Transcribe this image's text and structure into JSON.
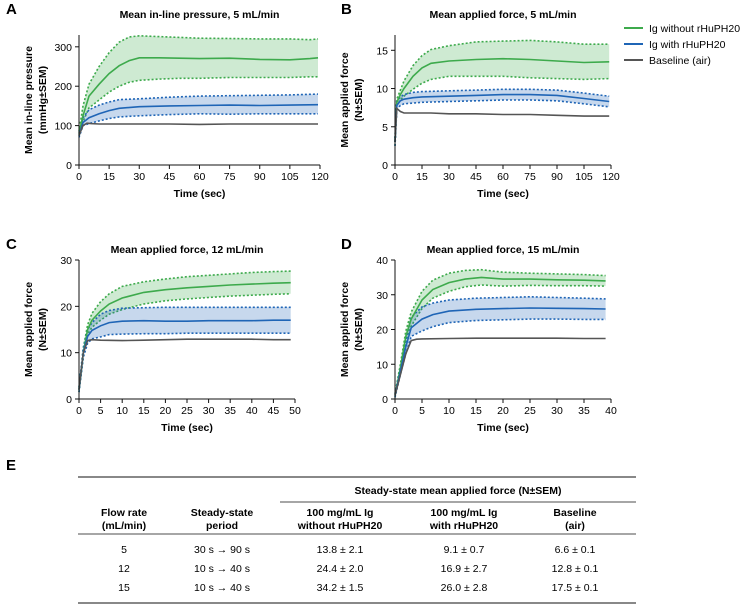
{
  "chart_data": [
    {
      "panel": "A",
      "type": "line",
      "title": "Mean in-line pressure, 5 mL/min",
      "xlabel": "Time (sec)",
      "ylabel": [
        "Mean in-line pressure",
        "(mmHg±SEM)"
      ],
      "xlim": [
        0,
        120
      ],
      "ylim": [
        0,
        330
      ],
      "xticks": [
        0,
        15,
        30,
        45,
        60,
        75,
        90,
        105,
        120
      ],
      "yticks": [
        0,
        100,
        200,
        300
      ],
      "series": [
        {
          "name": "Ig without rHuPH20",
          "color": "#3daa4c",
          "band": true,
          "x": [
            0,
            2,
            5,
            10,
            15,
            20,
            25,
            30,
            40,
            50,
            60,
            75,
            90,
            105,
            115,
            119
          ],
          "mean": [
            80,
            125,
            175,
            205,
            232,
            252,
            265,
            272,
            272,
            271,
            270,
            271,
            268,
            267,
            270,
            272
          ],
          "upper": [
            85,
            150,
            205,
            250,
            285,
            312,
            325,
            328,
            326,
            324,
            322,
            321,
            320,
            320,
            318,
            320
          ],
          "lower": [
            75,
            110,
            145,
            165,
            185,
            200,
            210,
            215,
            218,
            220,
            220,
            222,
            222,
            222,
            224,
            224
          ]
        },
        {
          "name": "Ig with rHuPH20",
          "color": "#1f65b6",
          "band": true,
          "x": [
            0,
            2,
            5,
            10,
            15,
            20,
            30,
            45,
            60,
            75,
            90,
            105,
            119
          ],
          "mean": [
            75,
            108,
            120,
            130,
            138,
            144,
            148,
            150,
            151,
            152,
            151,
            152,
            153
          ],
          "upper": [
            80,
            120,
            140,
            152,
            160,
            166,
            168,
            172,
            175,
            176,
            177,
            178,
            180
          ],
          "lower": [
            70,
            100,
            105,
            112,
            118,
            122,
            125,
            128,
            130,
            129,
            130,
            130,
            130
          ]
        },
        {
          "name": "Baseline (air)",
          "color": "#555555",
          "band": false,
          "x": [
            0,
            2,
            4,
            6,
            10,
            20,
            30,
            45,
            60,
            75,
            90,
            105,
            119
          ],
          "mean": [
            75,
            100,
            106,
            105,
            104,
            104,
            104,
            104,
            103,
            104,
            104,
            104,
            104
          ]
        }
      ]
    },
    {
      "panel": "B",
      "type": "line",
      "title": "Mean applied force, 5 mL/min",
      "xlabel": "Time (sec)",
      "ylabel": [
        "Mean applied force",
        "(N±SEM)"
      ],
      "xlim": [
        0,
        120
      ],
      "ylim": [
        0,
        17
      ],
      "xticks": [
        0,
        15,
        30,
        45,
        60,
        75,
        90,
        105,
        120
      ],
      "yticks": [
        0,
        5,
        10,
        15
      ],
      "series": [
        {
          "name": "Ig without rHuPH20",
          "color": "#3daa4c",
          "band": true,
          "x": [
            0,
            1,
            3,
            5,
            10,
            15,
            20,
            30,
            45,
            60,
            75,
            90,
            105,
            119
          ],
          "mean": [
            3,
            8.2,
            9.2,
            10,
            11.6,
            12.7,
            13.3,
            13.6,
            13.8,
            13.9,
            13.8,
            13.6,
            13.4,
            13.5
          ],
          "upper": [
            3.5,
            8.6,
            9.8,
            11,
            13.0,
            14.3,
            15.1,
            15.6,
            16.1,
            16.2,
            16.3,
            16.1,
            15.8,
            15.8
          ],
          "lower": [
            2.5,
            7.8,
            8.5,
            9.0,
            9.9,
            10.7,
            11.2,
            11.6,
            11.6,
            11.6,
            11.4,
            11.3,
            11.2,
            11.3
          ]
        },
        {
          "name": "Ig with rHuPH20",
          "color": "#1f65b6",
          "band": true,
          "x": [
            0,
            1,
            3,
            5,
            10,
            15,
            30,
            45,
            60,
            75,
            90,
            105,
            119
          ],
          "mean": [
            3,
            7.8,
            8.4,
            8.6,
            8.8,
            8.9,
            9.0,
            9.1,
            9.2,
            9.2,
            9.1,
            8.7,
            8.3
          ],
          "upper": [
            3.5,
            8.3,
            8.9,
            9.2,
            9.5,
            9.6,
            9.7,
            9.8,
            9.9,
            9.9,
            9.8,
            9.4,
            9.0
          ],
          "lower": [
            2.5,
            7.3,
            7.8,
            8.0,
            8.1,
            8.2,
            8.3,
            8.4,
            8.5,
            8.5,
            8.4,
            8.0,
            7.6
          ]
        },
        {
          "name": "Baseline (air)",
          "color": "#555555",
          "band": false,
          "x": [
            0,
            1,
            3,
            5,
            10,
            20,
            30,
            45,
            60,
            75,
            90,
            105,
            119
          ],
          "mean": [
            3,
            7.4,
            7.0,
            6.8,
            6.8,
            6.8,
            6.7,
            6.7,
            6.6,
            6.6,
            6.5,
            6.4,
            6.4
          ]
        }
      ]
    },
    {
      "panel": "C",
      "type": "line",
      "title": "Mean applied force, 12 mL/min",
      "xlabel": "Time (sec)",
      "ylabel": [
        "Mean applied force",
        "(N±SEM)"
      ],
      "xlim": [
        0,
        50
      ],
      "ylim": [
        0,
        30
      ],
      "xticks": [
        0,
        5,
        10,
        15,
        20,
        25,
        30,
        35,
        40,
        45,
        50
      ],
      "yticks": [
        0,
        10,
        20,
        30
      ],
      "series": [
        {
          "name": "Ig without rHuPH20",
          "color": "#3daa4c",
          "band": true,
          "x": [
            0,
            1,
            2,
            3,
            5,
            7,
            10,
            15,
            20,
            25,
            30,
            35,
            40,
            45,
            49
          ],
          "mean": [
            2,
            10,
            15,
            17,
            19,
            20.5,
            21.8,
            23.0,
            23.6,
            24.0,
            24.3,
            24.6,
            24.8,
            25.0,
            25.1
          ],
          "upper": [
            2.5,
            11,
            16,
            18.5,
            21,
            22.7,
            24.3,
            25.3,
            25.9,
            26.4,
            26.7,
            27.0,
            27.3,
            27.5,
            27.6
          ],
          "lower": [
            1.5,
            9,
            14,
            15.5,
            17,
            18.3,
            19.3,
            20.5,
            21.2,
            21.6,
            21.9,
            22.2,
            22.4,
            22.6,
            22.7
          ]
        },
        {
          "name": "Ig with rHuPH20",
          "color": "#1f65b6",
          "band": true,
          "x": [
            0,
            1,
            2,
            3,
            5,
            7,
            10,
            15,
            20,
            25,
            30,
            35,
            40,
            45,
            49
          ],
          "mean": [
            2,
            10,
            13.5,
            14.8,
            15.8,
            16.5,
            16.8,
            16.9,
            16.8,
            16.8,
            16.9,
            16.9,
            16.9,
            17.0,
            17.0
          ],
          "upper": [
            2.5,
            11,
            15,
            16.5,
            18.3,
            19.1,
            19.6,
            19.7,
            19.8,
            19.8,
            19.8,
            19.8,
            19.8,
            19.8,
            19.8
          ],
          "lower": [
            1.5,
            9,
            12,
            13.0,
            13.4,
            13.9,
            14.0,
            14.1,
            14.1,
            14.2,
            14.2,
            14.2,
            14.2,
            14.2,
            14.2
          ]
        },
        {
          "name": "Baseline (air)",
          "color": "#555555",
          "band": false,
          "x": [
            0,
            1,
            2,
            3,
            5,
            10,
            15,
            20,
            25,
            30,
            35,
            40,
            45,
            49
          ],
          "mean": [
            2,
            10,
            12.6,
            12.8,
            12.7,
            12.6,
            12.7,
            12.8,
            12.9,
            12.9,
            12.9,
            12.9,
            12.8,
            12.8
          ]
        }
      ]
    },
    {
      "panel": "D",
      "type": "line",
      "title": "Mean applied force, 15 mL/min",
      "xlabel": "Time (sec)",
      "ylabel": [
        "Mean applied force",
        "(N±SEM)"
      ],
      "xlim": [
        0,
        40
      ],
      "ylim": [
        0,
        40
      ],
      "xticks": [
        0,
        5,
        10,
        15,
        20,
        25,
        30,
        35,
        40
      ],
      "yticks": [
        0,
        10,
        20,
        30,
        40
      ],
      "series": [
        {
          "name": "Ig without rHuPH20",
          "color": "#3daa4c",
          "band": true,
          "x": [
            0,
            1,
            2,
            3,
            5,
            7,
            10,
            13,
            16,
            20,
            25,
            30,
            35,
            39
          ],
          "mean": [
            1,
            9,
            18,
            23,
            28.5,
            31.5,
            33.5,
            34.5,
            35.0,
            34.5,
            34.5,
            34.3,
            34.2,
            34.0
          ],
          "upper": [
            1.5,
            10,
            19.5,
            25,
            31,
            34.2,
            36.2,
            37.0,
            37.2,
            36.5,
            36.2,
            36.0,
            35.8,
            35.5
          ],
          "lower": [
            0.5,
            8,
            16.5,
            21,
            26,
            29,
            31,
            32.3,
            32.8,
            32.5,
            32.7,
            32.6,
            32.6,
            32.5
          ]
        },
        {
          "name": "Ig with rHuPH20",
          "color": "#1f65b6",
          "band": true,
          "x": [
            0,
            1,
            2,
            3,
            5,
            7,
            10,
            15,
            20,
            25,
            30,
            35,
            39
          ],
          "mean": [
            1,
            8,
            15,
            20.5,
            23,
            24.3,
            25.3,
            25.8,
            26.0,
            26.2,
            26.1,
            26.0,
            25.9
          ],
          "upper": [
            1.5,
            9,
            17,
            23.5,
            26.5,
            27.6,
            28.5,
            29.0,
            29.2,
            29.4,
            29.2,
            29.0,
            28.8
          ],
          "lower": [
            0.5,
            7,
            13,
            18,
            19.6,
            20.8,
            22.0,
            22.6,
            22.8,
            23.0,
            23.0,
            22.9,
            22.9
          ]
        },
        {
          "name": "Baseline (air)",
          "color": "#555555",
          "band": false,
          "x": [
            0,
            1,
            2,
            3,
            4,
            5,
            10,
            15,
            20,
            25,
            30,
            35,
            39
          ],
          "mean": [
            1,
            7,
            13,
            16.8,
            17.2,
            17.3,
            17.4,
            17.5,
            17.5,
            17.5,
            17.5,
            17.4,
            17.4
          ]
        }
      ]
    }
  ],
  "legend": [
    {
      "label": "Ig without rHuPH20",
      "color": "#3daa4c"
    },
    {
      "label": "Ig with rHuPH20",
      "color": "#1f65b6"
    },
    {
      "label": "Baseline (air)",
      "color": "#555555"
    }
  ],
  "panel_e": {
    "letter": "E",
    "group_header": "Steady-state mean applied force (N±SEM)",
    "columns": [
      [
        "Flow rate",
        "(mL/min)"
      ],
      [
        "Steady-state",
        "period"
      ],
      [
        "100 mg/mL Ig",
        "without rHuPH20"
      ],
      [
        "100 mg/mL Ig",
        "with rHuPH20"
      ],
      [
        "Baseline",
        "(air)"
      ]
    ],
    "rows": [
      [
        "5",
        "30 s → 90 s",
        "13.8 ± 2.1",
        "9.1 ± 0.7",
        "6.6 ± 0.1"
      ],
      [
        "12",
        "10 s → 40 s",
        "24.4 ± 2.0",
        "16.9 ± 2.7",
        "12.8 ± 0.1"
      ],
      [
        "15",
        "10 s → 40 s",
        "34.2 ± 1.5",
        "26.0 ± 2.8",
        "17.5 ± 0.1"
      ]
    ]
  }
}
